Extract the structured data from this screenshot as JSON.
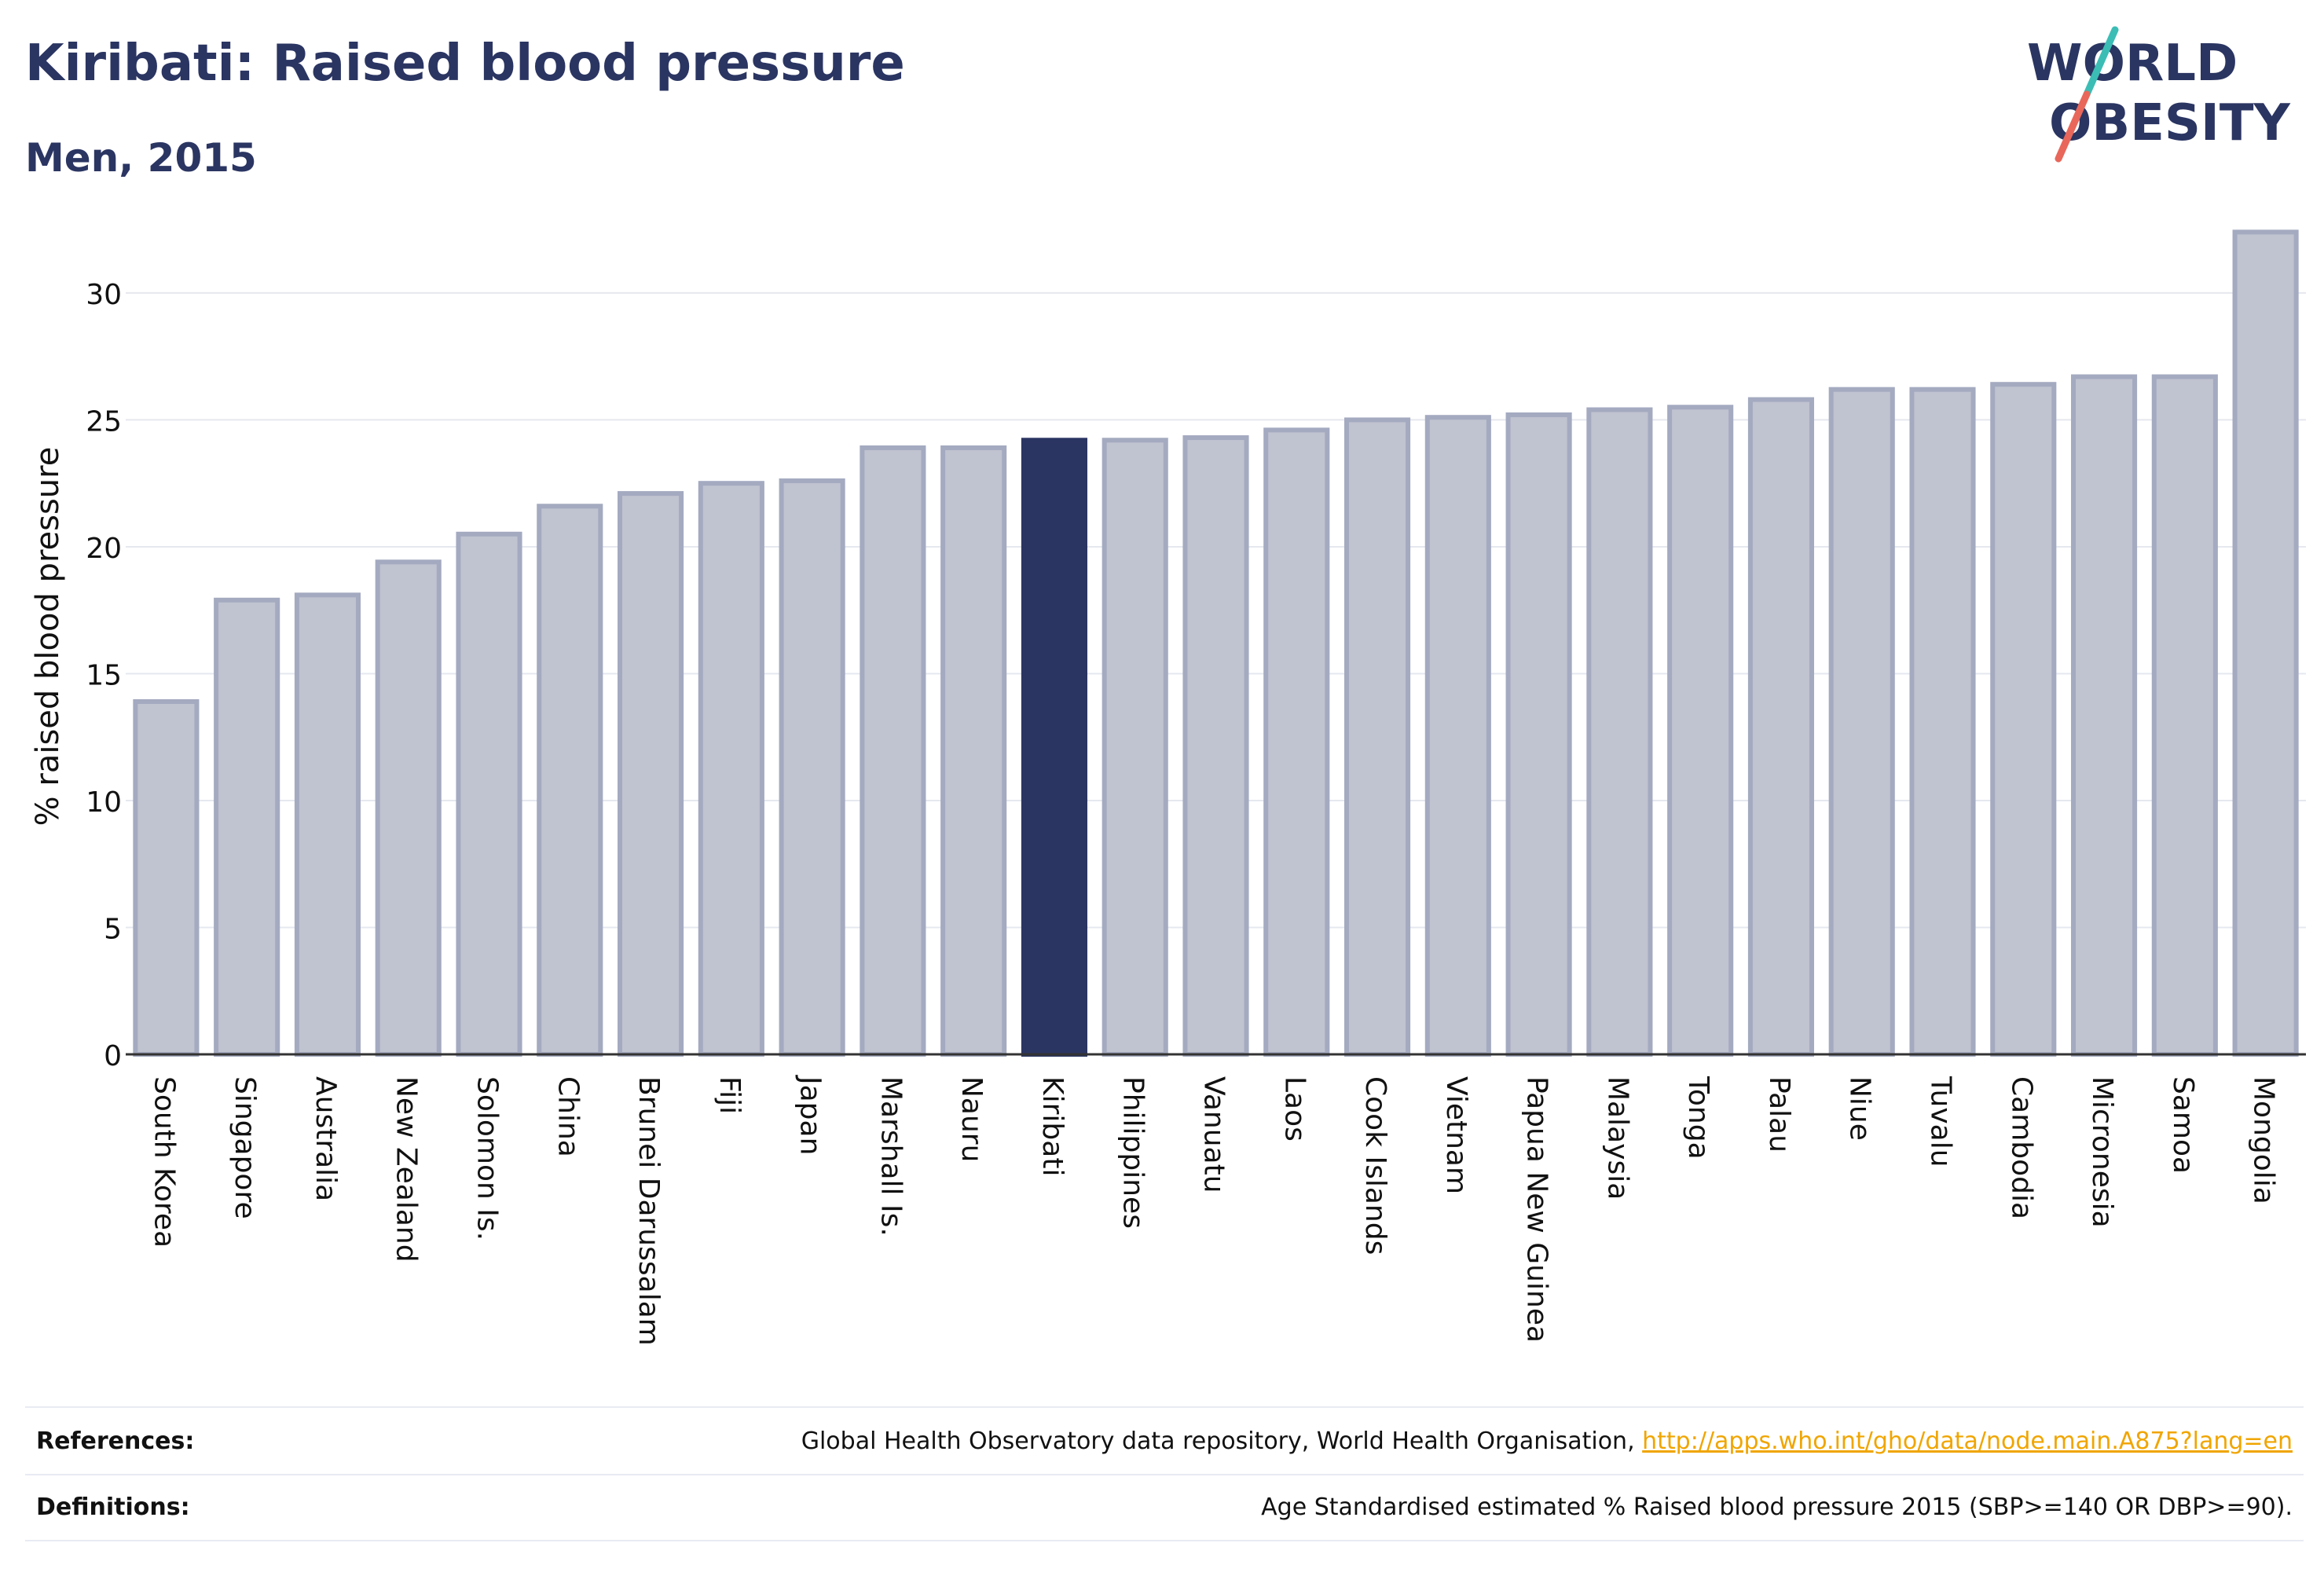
{
  "header": {
    "title": "Kiribati: Raised blood pressure",
    "subtitle": "Men, 2015"
  },
  "logo": {
    "line1": "WORLD",
    "line2": "OBESITY"
  },
  "colors": {
    "highlight_bar": "#2b3562",
    "bar_fill": "#c0c3d0",
    "bar_stroke": "#a4aac0",
    "text": "#2b3562",
    "link": "#f0a500",
    "logo_slash_top": "#3bbdb5",
    "logo_slash_bottom": "#e8675a"
  },
  "chart_data": {
    "type": "bar",
    "title": "Kiribati: Raised blood pressure",
    "subtitle": "Men, 2015",
    "ylabel": "% raised blood pressure",
    "xlabel": "",
    "ylim": [
      0,
      33
    ],
    "yticks": [
      0,
      5,
      10,
      15,
      20,
      25,
      30
    ],
    "grid": true,
    "highlight": "Kiribati",
    "categories": [
      "South Korea",
      "Singapore",
      "Australia",
      "New Zealand",
      "Solomon Is.",
      "China",
      "Brunei Darussalam",
      "Fiji",
      "Japan",
      "Marshall Is.",
      "Nauru",
      "Kiribati",
      "Philippines",
      "Vanuatu",
      "Laos",
      "Cook Islands",
      "Vietnam",
      "Papua New Guinea",
      "Malaysia",
      "Tonga",
      "Palau",
      "Niue",
      "Tuvalu",
      "Cambodia",
      "Micronesia",
      "Samoa",
      "Mongolia"
    ],
    "values": [
      13.9,
      17.9,
      18.1,
      19.4,
      20.5,
      21.6,
      22.1,
      22.5,
      22.6,
      23.9,
      23.9,
      24.2,
      24.2,
      24.3,
      24.6,
      25.0,
      25.1,
      25.2,
      25.4,
      25.5,
      25.8,
      26.2,
      26.2,
      26.4,
      26.7,
      26.7,
      32.4
    ]
  },
  "footer": {
    "references_label": "References:",
    "references_text": "Global Health Observatory data repository, World Health Organisation, ",
    "references_link": "http://apps.who.int/gho/data/node.main.A875?lang=en",
    "definitions_label": "Definitions:",
    "definitions_text": "Age Standardised estimated % Raised blood pressure 2015 (SBP>=140 OR DBP>=90)."
  }
}
